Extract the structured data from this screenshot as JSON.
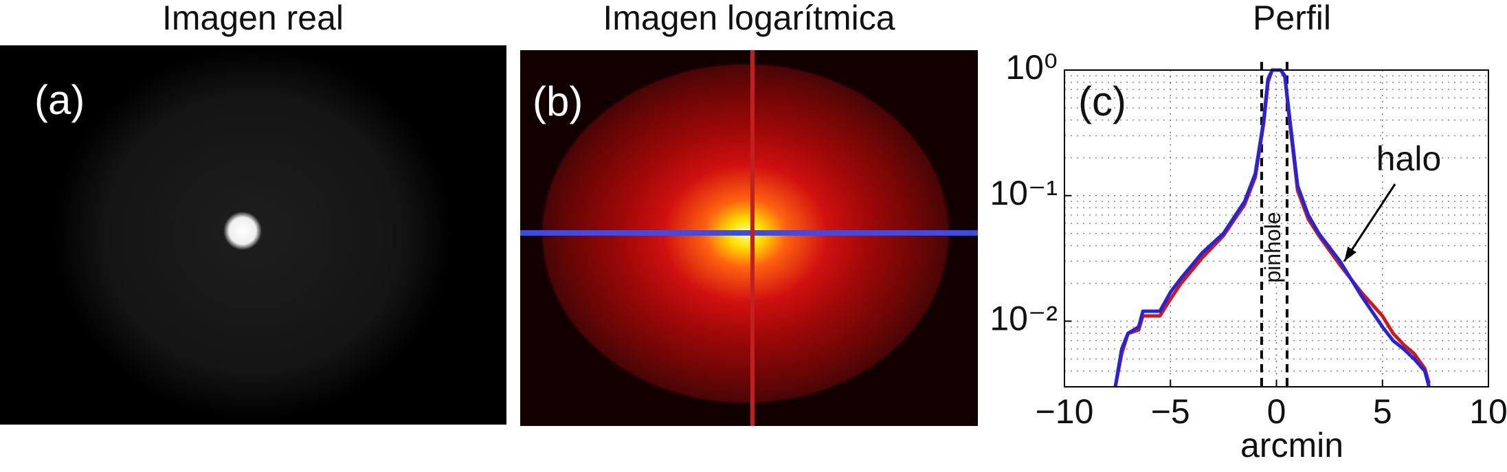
{
  "panels": [
    {
      "title": "Imagen real",
      "label": "(a)"
    },
    {
      "title": "Imagen logarítmica",
      "label": "(b)"
    }
  ],
  "chart_data": {
    "type": "line",
    "title": "Perfil",
    "panel_label": "(c)",
    "xlabel": "arcmin",
    "x": [
      -7.6,
      -7.3,
      -7,
      -6.5,
      -6.3,
      -5.5,
      -5,
      -4.5,
      -3.5,
      -2.5,
      -1.5,
      -1,
      -0.6,
      -0.4,
      -0.2,
      0.2,
      0.4,
      0.6,
      1,
      1.5,
      2,
      3,
      4,
      5,
      5.5,
      6,
      6.5,
      7,
      7.2
    ],
    "series": [
      {
        "name": "blue",
        "color": "#2323e0",
        "values": [
          0.003,
          0.006,
          0.008,
          0.009,
          0.012,
          0.012,
          0.017,
          0.022,
          0.035,
          0.05,
          0.09,
          0.15,
          0.4,
          0.85,
          1,
          1,
          0.9,
          0.45,
          0.12,
          0.07,
          0.05,
          0.03,
          0.016,
          0.009,
          0.007,
          0.006,
          0.005,
          0.004,
          0.003
        ]
      },
      {
        "name": "red",
        "color": "#d01818",
        "values": [
          0.003,
          0.0055,
          0.008,
          0.0085,
          0.011,
          0.011,
          0.015,
          0.02,
          0.032,
          0.048,
          0.085,
          0.14,
          0.38,
          0.8,
          1,
          1,
          0.88,
          0.42,
          0.11,
          0.065,
          0.048,
          0.028,
          0.017,
          0.011,
          0.008,
          0.0065,
          0.0055,
          0.0042,
          0.0032
        ]
      }
    ],
    "xlim": [
      -10,
      10
    ],
    "xticks": [
      {
        "value": -10,
        "label": "−10"
      },
      {
        "value": -5,
        "label": "−5"
      },
      0,
      5,
      10
    ],
    "ylim": [
      0.003,
      1
    ],
    "yticks": [
      {
        "value": 1,
        "label": "10⁰"
      },
      {
        "value": 0.1,
        "label": "10⁻¹"
      },
      {
        "value": 0.01,
        "label": "10⁻²"
      }
    ],
    "log_y": true,
    "grid": true,
    "vlines": [
      -0.7,
      0.5
    ],
    "annotations": [
      {
        "text": "halo",
        "x": 3.2,
        "y": 0.03
      },
      {
        "text": "pinhole"
      }
    ]
  }
}
